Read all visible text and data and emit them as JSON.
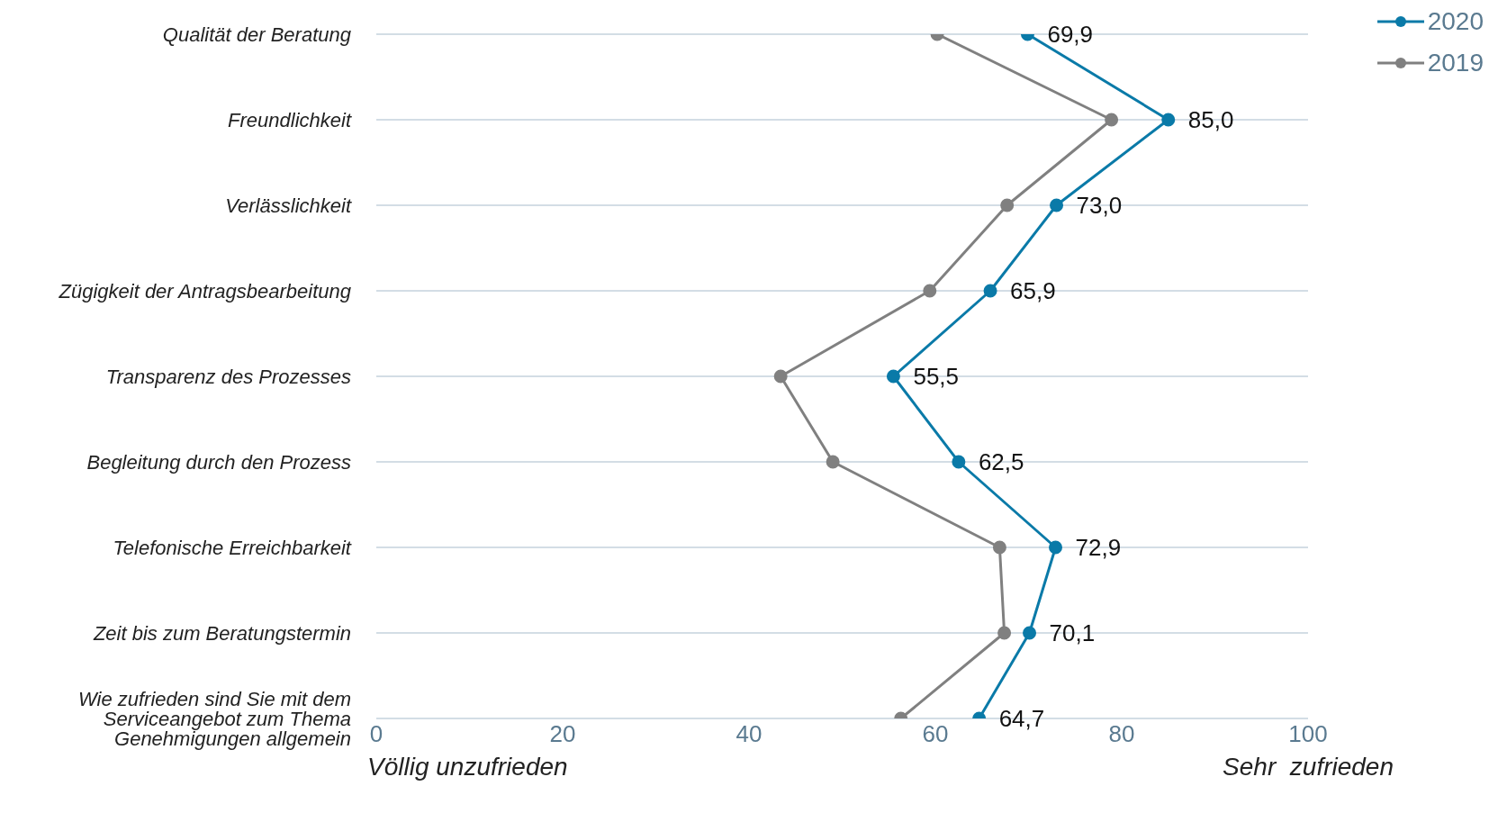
{
  "chart_data": {
    "type": "line",
    "orientation": "horizontal",
    "categories": [
      "Qualität der Beratung",
      "Freundlichkeit",
      "Verlässlichkeit",
      "Zügigkeit der Antragsbearbeitung",
      "Transparenz des Prozesses",
      "Begleitung durch den Prozess",
      "Telefonische Erreichbarkeit",
      "Zeit bis zum Beratungstermin",
      "Wie zufrieden sind Sie mit dem Serviceangebot zum Thema Genehmigungen allgemein"
    ],
    "series": [
      {
        "name": "2020",
        "color": "#0a7aa8",
        "values": [
          69.9,
          85.0,
          73.0,
          65.9,
          55.5,
          62.5,
          72.9,
          70.1,
          64.7
        ],
        "value_labels": [
          "69,9",
          "85,0",
          "73,0",
          "65,9",
          "55,5",
          "62,5",
          "72,9",
          "70,1",
          "64,7"
        ]
      },
      {
        "name": "2019",
        "color": "#808080",
        "values": [
          60.2,
          78.9,
          67.7,
          59.4,
          43.4,
          49.0,
          66.9,
          67.4,
          56.3
        ]
      }
    ],
    "xlim": [
      0,
      100
    ],
    "xticks": [
      0,
      20,
      40,
      60,
      80,
      100
    ],
    "grid": "y",
    "legend": "top right",
    "marker": "circle",
    "line_style": "solid",
    "annotations": [
      "Völlig unzufrieden",
      "Sehr  zufrieden"
    ]
  }
}
